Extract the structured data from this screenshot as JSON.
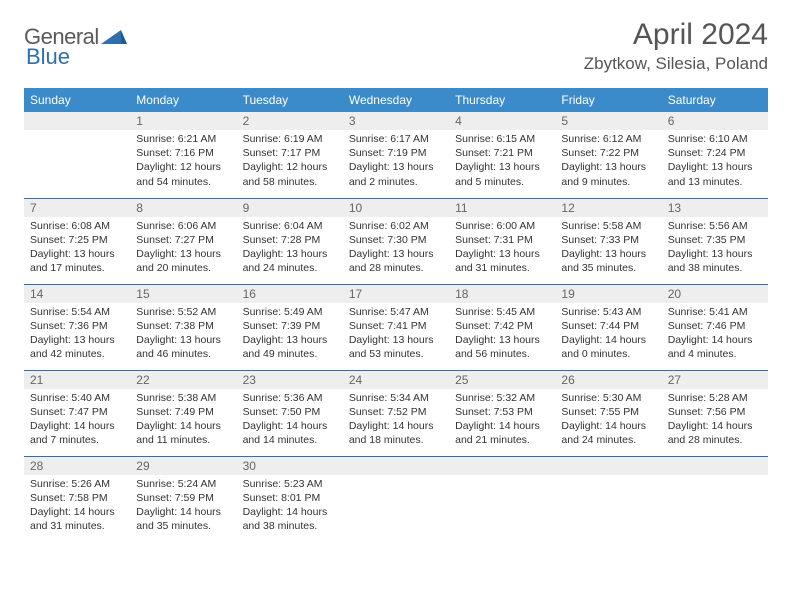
{
  "logo": {
    "text1": "General",
    "text2": "Blue"
  },
  "header": {
    "title": "April 2024",
    "location": "Zbytkow, Silesia, Poland"
  },
  "colors": {
    "header_bg": "#3b8bca",
    "header_text": "#ffffff",
    "daynum_bg": "#eeeeee",
    "cell_border": "#2f6fb0",
    "logo_gray": "#5a5a5a",
    "logo_blue": "#2f6fb0"
  },
  "daysOfWeek": [
    "Sunday",
    "Monday",
    "Tuesday",
    "Wednesday",
    "Thursday",
    "Friday",
    "Saturday"
  ],
  "weeks": [
    [
      {
        "day": "",
        "lines": []
      },
      {
        "day": "1",
        "lines": [
          "Sunrise: 6:21 AM",
          "Sunset: 7:16 PM",
          "Daylight: 12 hours",
          "and 54 minutes."
        ]
      },
      {
        "day": "2",
        "lines": [
          "Sunrise: 6:19 AM",
          "Sunset: 7:17 PM",
          "Daylight: 12 hours",
          "and 58 minutes."
        ]
      },
      {
        "day": "3",
        "lines": [
          "Sunrise: 6:17 AM",
          "Sunset: 7:19 PM",
          "Daylight: 13 hours",
          "and 2 minutes."
        ]
      },
      {
        "day": "4",
        "lines": [
          "Sunrise: 6:15 AM",
          "Sunset: 7:21 PM",
          "Daylight: 13 hours",
          "and 5 minutes."
        ]
      },
      {
        "day": "5",
        "lines": [
          "Sunrise: 6:12 AM",
          "Sunset: 7:22 PM",
          "Daylight: 13 hours",
          "and 9 minutes."
        ]
      },
      {
        "day": "6",
        "lines": [
          "Sunrise: 6:10 AM",
          "Sunset: 7:24 PM",
          "Daylight: 13 hours",
          "and 13 minutes."
        ]
      }
    ],
    [
      {
        "day": "7",
        "lines": [
          "Sunrise: 6:08 AM",
          "Sunset: 7:25 PM",
          "Daylight: 13 hours",
          "and 17 minutes."
        ]
      },
      {
        "day": "8",
        "lines": [
          "Sunrise: 6:06 AM",
          "Sunset: 7:27 PM",
          "Daylight: 13 hours",
          "and 20 minutes."
        ]
      },
      {
        "day": "9",
        "lines": [
          "Sunrise: 6:04 AM",
          "Sunset: 7:28 PM",
          "Daylight: 13 hours",
          "and 24 minutes."
        ]
      },
      {
        "day": "10",
        "lines": [
          "Sunrise: 6:02 AM",
          "Sunset: 7:30 PM",
          "Daylight: 13 hours",
          "and 28 minutes."
        ]
      },
      {
        "day": "11",
        "lines": [
          "Sunrise: 6:00 AM",
          "Sunset: 7:31 PM",
          "Daylight: 13 hours",
          "and 31 minutes."
        ]
      },
      {
        "day": "12",
        "lines": [
          "Sunrise: 5:58 AM",
          "Sunset: 7:33 PM",
          "Daylight: 13 hours",
          "and 35 minutes."
        ]
      },
      {
        "day": "13",
        "lines": [
          "Sunrise: 5:56 AM",
          "Sunset: 7:35 PM",
          "Daylight: 13 hours",
          "and 38 minutes."
        ]
      }
    ],
    [
      {
        "day": "14",
        "lines": [
          "Sunrise: 5:54 AM",
          "Sunset: 7:36 PM",
          "Daylight: 13 hours",
          "and 42 minutes."
        ]
      },
      {
        "day": "15",
        "lines": [
          "Sunrise: 5:52 AM",
          "Sunset: 7:38 PM",
          "Daylight: 13 hours",
          "and 46 minutes."
        ]
      },
      {
        "day": "16",
        "lines": [
          "Sunrise: 5:49 AM",
          "Sunset: 7:39 PM",
          "Daylight: 13 hours",
          "and 49 minutes."
        ]
      },
      {
        "day": "17",
        "lines": [
          "Sunrise: 5:47 AM",
          "Sunset: 7:41 PM",
          "Daylight: 13 hours",
          "and 53 minutes."
        ]
      },
      {
        "day": "18",
        "lines": [
          "Sunrise: 5:45 AM",
          "Sunset: 7:42 PM",
          "Daylight: 13 hours",
          "and 56 minutes."
        ]
      },
      {
        "day": "19",
        "lines": [
          "Sunrise: 5:43 AM",
          "Sunset: 7:44 PM",
          "Daylight: 14 hours",
          "and 0 minutes."
        ]
      },
      {
        "day": "20",
        "lines": [
          "Sunrise: 5:41 AM",
          "Sunset: 7:46 PM",
          "Daylight: 14 hours",
          "and 4 minutes."
        ]
      }
    ],
    [
      {
        "day": "21",
        "lines": [
          "Sunrise: 5:40 AM",
          "Sunset: 7:47 PM",
          "Daylight: 14 hours",
          "and 7 minutes."
        ]
      },
      {
        "day": "22",
        "lines": [
          "Sunrise: 5:38 AM",
          "Sunset: 7:49 PM",
          "Daylight: 14 hours",
          "and 11 minutes."
        ]
      },
      {
        "day": "23",
        "lines": [
          "Sunrise: 5:36 AM",
          "Sunset: 7:50 PM",
          "Daylight: 14 hours",
          "and 14 minutes."
        ]
      },
      {
        "day": "24",
        "lines": [
          "Sunrise: 5:34 AM",
          "Sunset: 7:52 PM",
          "Daylight: 14 hours",
          "and 18 minutes."
        ]
      },
      {
        "day": "25",
        "lines": [
          "Sunrise: 5:32 AM",
          "Sunset: 7:53 PM",
          "Daylight: 14 hours",
          "and 21 minutes."
        ]
      },
      {
        "day": "26",
        "lines": [
          "Sunrise: 5:30 AM",
          "Sunset: 7:55 PM",
          "Daylight: 14 hours",
          "and 24 minutes."
        ]
      },
      {
        "day": "27",
        "lines": [
          "Sunrise: 5:28 AM",
          "Sunset: 7:56 PM",
          "Daylight: 14 hours",
          "and 28 minutes."
        ]
      }
    ],
    [
      {
        "day": "28",
        "lines": [
          "Sunrise: 5:26 AM",
          "Sunset: 7:58 PM",
          "Daylight: 14 hours",
          "and 31 minutes."
        ]
      },
      {
        "day": "29",
        "lines": [
          "Sunrise: 5:24 AM",
          "Sunset: 7:59 PM",
          "Daylight: 14 hours",
          "and 35 minutes."
        ]
      },
      {
        "day": "30",
        "lines": [
          "Sunrise: 5:23 AM",
          "Sunset: 8:01 PM",
          "Daylight: 14 hours",
          "and 38 minutes."
        ]
      },
      {
        "day": "",
        "lines": []
      },
      {
        "day": "",
        "lines": []
      },
      {
        "day": "",
        "lines": []
      },
      {
        "day": "",
        "lines": []
      }
    ]
  ]
}
